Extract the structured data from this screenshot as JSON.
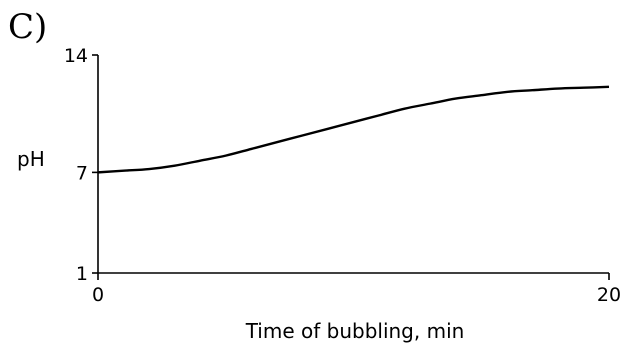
{
  "panel_label": "C)",
  "chart_data": {
    "type": "line",
    "title": "",
    "xlabel": "Time of bubbling, min",
    "ylabel": "pH",
    "xlim": [
      0,
      20
    ],
    "ylim": [
      1,
      14
    ],
    "xticks": [
      0,
      20
    ],
    "yticks": [
      1,
      7,
      14
    ],
    "grid": false,
    "series": [
      {
        "x": [
          0,
          1,
          2,
          3,
          4,
          5,
          6,
          7,
          8,
          9,
          10,
          11,
          12,
          13,
          14,
          15,
          16,
          17,
          18,
          19,
          20
        ],
        "y": [
          7.0,
          7.1,
          7.2,
          7.4,
          7.7,
          8.0,
          8.4,
          8.8,
          9.2,
          9.6,
          10.0,
          10.4,
          10.8,
          11.1,
          11.4,
          11.6,
          11.8,
          11.9,
          12.0,
          12.05,
          12.1
        ]
      }
    ]
  }
}
